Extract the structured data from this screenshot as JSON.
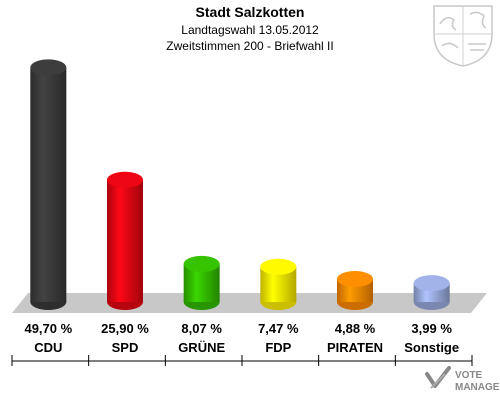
{
  "chart_data": {
    "type": "bar",
    "title": "Stadt Salzkotten",
    "subtitle_1": "Landtagswahl 13.05.2012",
    "subtitle_2": "Zweitstimmen 200 - Briefwahl II",
    "categories": [
      "CDU",
      "SPD",
      "GRÜNE",
      "FDP",
      "PIRATEN",
      "Sonstige"
    ],
    "values": [
      49.7,
      25.9,
      8.07,
      7.47,
      4.88,
      3.99
    ],
    "value_labels": [
      "49,70 %",
      "25,90 %",
      "8,07 %",
      "7,47 %",
      "4,88 %",
      "3,99 %"
    ],
    "colors": [
      "#3a3a3a",
      "#e30613",
      "#33bb00",
      "#ffee00",
      "#ff8800",
      "#99aadd"
    ],
    "ylim": [
      0,
      50
    ],
    "grid": false,
    "legend": "none"
  },
  "brand": {
    "line1": "VOTE",
    "line2": "MANAGER",
    "icon": "vote-manager-logo-icon"
  },
  "crest": {
    "icon": "nrw-coat-of-arms-icon"
  }
}
